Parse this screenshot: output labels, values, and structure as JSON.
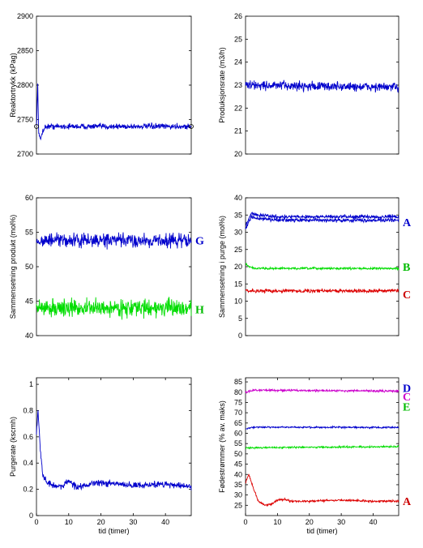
{
  "chart_data": [
    {
      "type": "line",
      "ylabel": "Reaktortrykk (kPag)",
      "xlabel": "",
      "xlim": [
        0,
        48
      ],
      "xticks": [],
      "ylim": [
        2700,
        2900
      ],
      "yticks": [
        2700,
        2750,
        2800,
        2850,
        2900
      ],
      "series": [
        {
          "color": "#0000cc",
          "noise": 2,
          "keys": [
            [
              0,
              2740
            ],
            [
              0.4,
              2800
            ],
            [
              0.7,
              2730
            ],
            [
              1.2,
              2720
            ],
            [
              2,
              2735
            ],
            [
              3,
              2740
            ],
            [
              48,
              2740
            ]
          ],
          "markers": [
            0,
            48
          ]
        }
      ]
    },
    {
      "type": "line",
      "ylabel": "Produksjonsrate (m3/h)",
      "xlabel": "",
      "xlim": [
        0,
        48
      ],
      "xticks": [],
      "ylim": [
        20,
        26
      ],
      "yticks": [
        20,
        21,
        22,
        23,
        24,
        25,
        26
      ],
      "series": [
        {
          "color": "#0000cc",
          "noise": 0.1,
          "keys": [
            [
              0,
              23
            ],
            [
              48,
              22.9
            ]
          ]
        }
      ]
    },
    {
      "type": "line",
      "ylabel": "Sammensetning produkt (mol%)",
      "xlabel": "",
      "xlim": [
        0,
        48
      ],
      "xticks": [],
      "ylim": [
        40,
        60
      ],
      "yticks": [
        40,
        45,
        50,
        55,
        60
      ],
      "series": [
        {
          "color": "#0000cc",
          "noise": 0.5,
          "keys": [
            [
              0,
              53.8
            ],
            [
              48,
              53.8
            ]
          ],
          "label": "G",
          "labelColor": "#0000cc",
          "labelY": 53.8
        },
        {
          "color": "#00dd00",
          "noise": 0.6,
          "keys": [
            [
              0,
              44
            ],
            [
              48,
              44
            ]
          ],
          "label": "H",
          "labelColor": "#00bb00",
          "labelY": 43.8
        }
      ]
    },
    {
      "type": "line",
      "ylabel": "Sammensetning i purge (mol%)",
      "xlabel": "",
      "xlim": [
        0,
        48
      ],
      "xticks": [],
      "ylim": [
        0,
        40
      ],
      "yticks": [
        0,
        5,
        10,
        15,
        20,
        25,
        30,
        35,
        40
      ],
      "series": [
        {
          "color": "#0000cc",
          "noise": 0.25,
          "keys": [
            [
              0,
              32
            ],
            [
              1,
              34
            ],
            [
              2,
              35.5
            ],
            [
              4,
              35
            ],
            [
              10,
              34.5
            ],
            [
              48,
              34.5
            ]
          ],
          "label": "A",
          "labelColor": "#0000cc",
          "labelY": 33
        },
        {
          "color": "#0000cc",
          "noise": 0.25,
          "keys": [
            [
              0,
              31
            ],
            [
              1,
              33
            ],
            [
              2,
              34.5
            ],
            [
              4,
              34
            ],
            [
              10,
              33.5
            ],
            [
              48,
              33.5
            ]
          ]
        },
        {
          "color": "#00dd00",
          "noise": 0.15,
          "keys": [
            [
              0,
              21
            ],
            [
              1,
              20
            ],
            [
              3,
              19.5
            ],
            [
              48,
              19.5
            ]
          ],
          "label": "B",
          "labelColor": "#00bb00",
          "labelY": 20
        },
        {
          "color": "#dd0000",
          "noise": 0.25,
          "keys": [
            [
              0,
              13
            ],
            [
              48,
              13
            ]
          ],
          "label": "C",
          "labelColor": "#cc0000",
          "labelY": 12
        }
      ]
    },
    {
      "type": "line",
      "ylabel": "Purgerate (kscmh)",
      "xlabel": "tid (timer)",
      "xlim": [
        0,
        48
      ],
      "xticks": [
        0,
        10,
        20,
        30,
        40
      ],
      "ylim": [
        0,
        1.05
      ],
      "yticks": [
        0,
        0.2,
        0.4,
        0.6,
        0.8,
        1
      ],
      "series": [
        {
          "color": "#0000cc",
          "noise": 0.012,
          "keys": [
            [
              0,
              0.62
            ],
            [
              0.5,
              0.8
            ],
            [
              1.2,
              0.5
            ],
            [
              2,
              0.3
            ],
            [
              3,
              0.26
            ],
            [
              5,
              0.23
            ],
            [
              8,
              0.22
            ],
            [
              10,
              0.27
            ],
            [
              12,
              0.22
            ],
            [
              20,
              0.25
            ],
            [
              30,
              0.23
            ],
            [
              40,
              0.24
            ],
            [
              48,
              0.22
            ]
          ]
        }
      ]
    },
    {
      "type": "line",
      "ylabel": "Fødestrømmer (% av. maks)",
      "xlabel": "tid (timer)",
      "xlim": [
        0,
        48
      ],
      "xticks": [
        0,
        10,
        20,
        30,
        40
      ],
      "ylim": [
        20,
        87
      ],
      "yticks": [
        25,
        30,
        35,
        40,
        45,
        50,
        55,
        60,
        65,
        70,
        75,
        80,
        85
      ],
      "series": [
        {
          "color": "#0000cc",
          "noise": 0.2,
          "keys": [
            [
              0,
              62
            ],
            [
              2,
              63
            ],
            [
              48,
              62.8
            ]
          ],
          "label": "D",
          "labelColor": "#0000cc",
          "labelY": 82
        },
        {
          "color": "#cc00cc",
          "noise": 0.25,
          "keys": [
            [
              0,
              80
            ],
            [
              3,
              81
            ],
            [
              48,
              80.5
            ]
          ],
          "label": "C",
          "labelColor": "#cc00cc",
          "labelY": 78
        },
        {
          "color": "#00dd00",
          "noise": 0.2,
          "keys": [
            [
              0,
              53
            ],
            [
              48,
              53.5
            ]
          ],
          "label": "E",
          "labelColor": "#00bb00",
          "labelY": 73
        },
        {
          "color": "#dd0000",
          "noise": 0.25,
          "keys": [
            [
              0,
              36
            ],
            [
              1,
              40
            ],
            [
              2.5,
              33
            ],
            [
              4,
              27
            ],
            [
              6,
              25
            ],
            [
              8,
              25.5
            ],
            [
              10,
              27.5
            ],
            [
              12,
              28
            ],
            [
              14,
              27
            ],
            [
              20,
              27
            ],
            [
              30,
              27.5
            ],
            [
              40,
              27
            ],
            [
              48,
              27
            ]
          ],
          "label": "A",
          "labelColor": "#cc0000",
          "labelY": 27
        }
      ]
    }
  ]
}
